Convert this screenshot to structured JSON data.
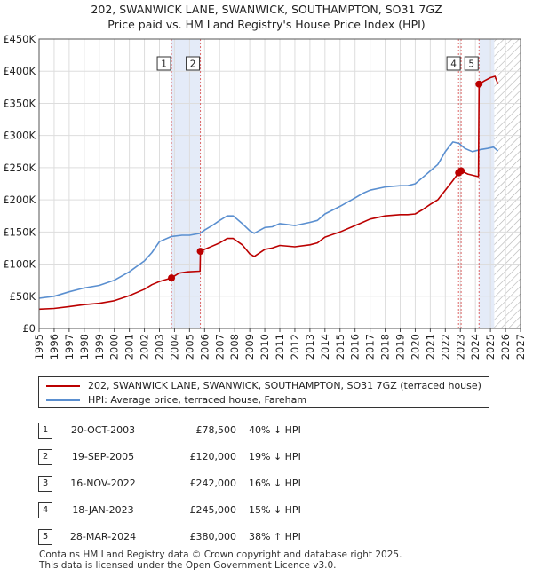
{
  "title": {
    "line1": "202, SWANWICK LANE, SWANWICK, SOUTHAMPTON, SO31 7GZ",
    "line2": "Price paid vs. HM Land Registry's House Price Index (HPI)"
  },
  "chart_data": {
    "type": "line",
    "ylabel_ticks": [
      "£0",
      "£50K",
      "£100K",
      "£150K",
      "£200K",
      "£250K",
      "£300K",
      "£350K",
      "£400K",
      "£450K"
    ],
    "yticks": [
      0,
      50000,
      100000,
      150000,
      200000,
      250000,
      300000,
      350000,
      400000,
      450000
    ],
    "ylim": [
      0,
      450000
    ],
    "xlim": [
      1995,
      2027
    ],
    "xtick_labels": [
      "1995",
      "1996",
      "1997",
      "1998",
      "1999",
      "2000",
      "2001",
      "2002",
      "2003",
      "2004",
      "2005",
      "2006",
      "2007",
      "2008",
      "2009",
      "2010",
      "2011",
      "2012",
      "2013",
      "2014",
      "2015",
      "2016",
      "2017",
      "2018",
      "2019",
      "2020",
      "2021",
      "2022",
      "2023",
      "2024",
      "2025",
      "2026",
      "2027"
    ],
    "grid": true,
    "shaded_spans": [
      [
        2003.8,
        2005.72
      ],
      [
        2024.24,
        2025.25
      ]
    ],
    "hatched_future_from": 2025.25,
    "series": [
      {
        "name": "HPI: Average price, terraced house, Fareham",
        "color": "#5a8fd0",
        "x": [
          1995,
          1996,
          1997,
          1998,
          1999,
          2000,
          2001,
          2002,
          2002.5,
          2003,
          2003.8,
          2004.5,
          2005,
          2005.7,
          2006,
          2006.5,
          2007,
          2007.5,
          2007.9,
          2008.5,
          2009,
          2009.3,
          2010,
          2010.5,
          2011,
          2012,
          2013,
          2013.5,
          2014,
          2015,
          2016,
          2016.5,
          2017,
          2018,
          2019,
          2019.5,
          2020,
          2020.5,
          2021,
          2021.5,
          2022,
          2022.5,
          2022.9,
          2023.3,
          2023.8,
          2024.3,
          2024.8,
          2025.2,
          2025.5
        ],
        "values": [
          47000,
          50000,
          57000,
          63000,
          67000,
          75000,
          88000,
          105000,
          118000,
          135000,
          143000,
          145000,
          145000,
          148000,
          153000,
          160000,
          168000,
          175000,
          175000,
          163000,
          152000,
          148000,
          157000,
          158000,
          163000,
          160000,
          165000,
          168000,
          178000,
          190000,
          203000,
          210000,
          215000,
          220000,
          222000,
          222000,
          225000,
          235000,
          245000,
          255000,
          275000,
          290000,
          288000,
          280000,
          275000,
          278000,
          280000,
          282000,
          276000
        ]
      },
      {
        "name": "202, SWANWICK LANE, SWANWICK, SOUTHAMPTON, SO31 7GZ (terraced house)",
        "color": "#bb0000",
        "x": [
          1995,
          1996,
          1997,
          1998,
          1999,
          2000,
          2001,
          2002,
          2002.5,
          2003,
          2003.8,
          2004.3,
          2004.9,
          2005.7,
          2005.72,
          2006,
          2006.5,
          2007,
          2007.5,
          2007.9,
          2008.5,
          2009,
          2009.3,
          2010,
          2010.5,
          2011,
          2012,
          2013,
          2013.5,
          2014,
          2015,
          2016,
          2016.5,
          2017,
          2018,
          2019,
          2019.5,
          2020,
          2020.5,
          2021,
          2021.5,
          2022,
          2022.5,
          2022.88,
          2023.05,
          2023.5,
          2024.2,
          2024.24,
          2024.6,
          2025,
          2025.3,
          2025.5
        ],
        "values": [
          30000,
          31000,
          34000,
          37000,
          39000,
          43000,
          51000,
          61000,
          68000,
          73000,
          78500,
          86000,
          88000,
          89000,
          120000,
          123000,
          128000,
          133000,
          140000,
          140000,
          130000,
          116000,
          112000,
          123000,
          125000,
          129000,
          127000,
          130000,
          133000,
          142000,
          150000,
          160000,
          165000,
          170000,
          175000,
          177000,
          177000,
          178000,
          185000,
          193000,
          200000,
          215000,
          230000,
          242000,
          245000,
          240000,
          236000,
          380000,
          385000,
          390000,
          392000,
          380000
        ]
      }
    ],
    "markers": [
      {
        "label": "1",
        "x": 2003.8,
        "y": 78500
      },
      {
        "label": "2",
        "x": 2005.72,
        "y": 120000
      },
      {
        "label": "3",
        "x": 2022.88,
        "y": 242000
      },
      {
        "label": "4",
        "x": 2023.05,
        "y": 245000
      },
      {
        "label": "5",
        "x": 2024.24,
        "y": 380000
      }
    ],
    "box_labels": [
      {
        "label": "1",
        "x": 2003.8
      },
      {
        "label": "2",
        "x": 2005.72
      },
      {
        "label": "4",
        "x": 2023.05
      },
      {
        "label": "5",
        "x": 2024.24
      }
    ]
  },
  "legend": {
    "property_label": "202, SWANWICK LANE, SWANWICK, SOUTHAMPTON, SO31 7GZ (terraced house)",
    "hpi_label": "HPI: Average price, terraced house, Fareham",
    "property_color": "#bb0000",
    "hpi_color": "#5a8fd0"
  },
  "sales": [
    {
      "num": "1",
      "date": "20-OCT-2003",
      "price": "£78,500",
      "hpi": "40% ↓ HPI"
    },
    {
      "num": "2",
      "date": "19-SEP-2005",
      "price": "£120,000",
      "hpi": "19% ↓ HPI"
    },
    {
      "num": "3",
      "date": "16-NOV-2022",
      "price": "£242,000",
      "hpi": "16% ↓ HPI"
    },
    {
      "num": "4",
      "date": "18-JAN-2023",
      "price": "£245,000",
      "hpi": "15% ↓ HPI"
    },
    {
      "num": "5",
      "date": "28-MAR-2024",
      "price": "£380,000",
      "hpi": "38% ↑ HPI"
    }
  ],
  "footer": {
    "line1": "Contains HM Land Registry data © Crown copyright and database right 2025.",
    "line2": "This data is licensed under the Open Government Licence v3.0."
  }
}
